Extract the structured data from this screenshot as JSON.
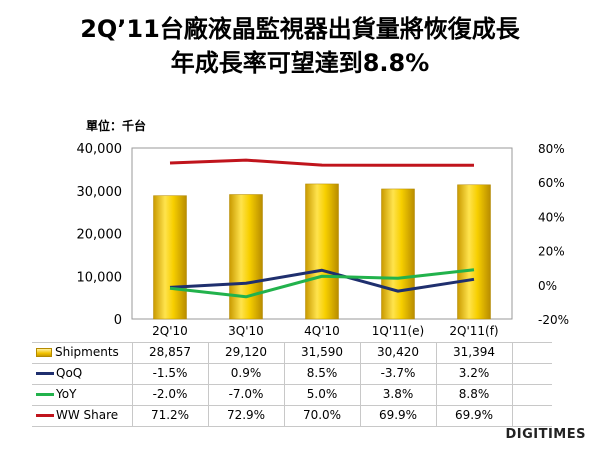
{
  "title_line1": "2Q’11台廠液晶監視器出貨量將恢復成長",
  "title_line2": "年成長率可望達到8.8%",
  "unit_label": "單位：千台",
  "logo_text": "DIGITIMES",
  "chart_data": {
    "type": "bar+line",
    "categories": [
      "2Q'10",
      "3Q'10",
      "4Q'10",
      "1Q'11(e)",
      "2Q'11(f)"
    ],
    "left_axis": {
      "min": 0,
      "max": 40000,
      "ticks": [
        "0",
        "10,000",
        "20,000",
        "30,000",
        "40,000"
      ]
    },
    "right_axis": {
      "min": -20,
      "max": 80,
      "ticks": [
        "-20%",
        "0%",
        "20%",
        "40%",
        "60%",
        "80%"
      ]
    },
    "series": [
      {
        "name": "Shipments",
        "kind": "bar",
        "axis": "left",
        "values": [
          28857,
          29120,
          31590,
          30420,
          31394
        ],
        "labels": [
          "28,857",
          "29,120",
          "31,590",
          "30,420",
          "31,394"
        ],
        "color": "#f2c200"
      },
      {
        "name": "QoQ",
        "kind": "line",
        "axis": "right",
        "values": [
          -1.5,
          0.9,
          8.5,
          -3.7,
          3.2
        ],
        "labels": [
          "-1.5%",
          "0.9%",
          "8.5%",
          "-3.7%",
          "3.2%"
        ],
        "color": "#1f2f6e"
      },
      {
        "name": "YoY",
        "kind": "line",
        "axis": "right",
        "values": [
          -2.0,
          -7.0,
          5.0,
          3.8,
          8.8
        ],
        "labels": [
          "-2.0%",
          "-7.0%",
          "5.0%",
          "3.8%",
          "8.8%"
        ],
        "color": "#22b24c"
      },
      {
        "name": "WW Share",
        "kind": "line",
        "axis": "right",
        "values": [
          71.2,
          72.9,
          70.0,
          69.9,
          69.9
        ],
        "labels": [
          "71.2%",
          "72.9%",
          "70.0%",
          "69.9%",
          "69.9%"
        ],
        "color": "#c0141c"
      }
    ]
  }
}
